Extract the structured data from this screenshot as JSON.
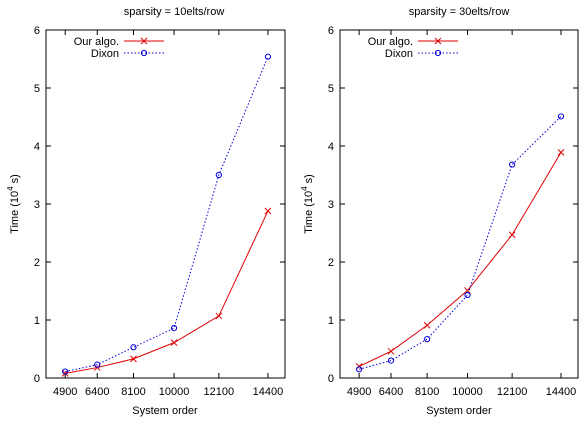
{
  "chart_data": [
    {
      "type": "line",
      "title": "sparsity = 10elts/row",
      "xlabel": "System order",
      "ylabel": "Time (10^4 s)",
      "ylabel_base": "Time (10",
      "ylabel_exp": "4",
      "ylabel_tail": " s)",
      "categories": [
        "4900",
        "6400",
        "8100",
        "10000",
        "12100",
        "14400"
      ],
      "x": [
        4900,
        6400,
        8100,
        10000,
        12100,
        14400
      ],
      "xlim": [
        4000,
        15200
      ],
      "ylim": [
        0,
        6
      ],
      "yticks": [
        "0",
        "1",
        "2",
        "3",
        "4",
        "5",
        "6"
      ],
      "legend_position": "top-left",
      "grid": false,
      "series": [
        {
          "name": "Our algo.",
          "color": "#e00000",
          "marker": "x",
          "style": "solid",
          "values": [
            0.08,
            0.18,
            0.33,
            0.61,
            1.07,
            2.88
          ]
        },
        {
          "name": "Dixon",
          "color": "#0000dd",
          "marker": "o",
          "style": "dotted",
          "values": [
            0.11,
            0.23,
            0.53,
            0.86,
            3.5,
            5.54
          ]
        }
      ]
    },
    {
      "type": "line",
      "title": "sparsity = 30elts/row",
      "xlabel": "System order",
      "ylabel": "Time (10^4 s)",
      "ylabel_base": "Time (10",
      "ylabel_exp": "4",
      "ylabel_tail": " s)",
      "categories": [
        "4900",
        "6400",
        "8100",
        "10000",
        "12100",
        "14400"
      ],
      "x": [
        4900,
        6400,
        8100,
        10000,
        12100,
        14400
      ],
      "xlim": [
        4000,
        15200
      ],
      "ylim": [
        0,
        6
      ],
      "yticks": [
        "0",
        "1",
        "2",
        "3",
        "4",
        "5",
        "6"
      ],
      "legend_position": "top-left",
      "grid": false,
      "series": [
        {
          "name": "Our algo.",
          "color": "#e00000",
          "marker": "x",
          "style": "solid",
          "values": [
            0.2,
            0.46,
            0.91,
            1.51,
            2.47,
            3.89
          ]
        },
        {
          "name": "Dixon",
          "color": "#0000dd",
          "marker": "o",
          "style": "dotted",
          "values": [
            0.15,
            0.3,
            0.67,
            1.43,
            3.68,
            4.51
          ]
        }
      ]
    }
  ]
}
